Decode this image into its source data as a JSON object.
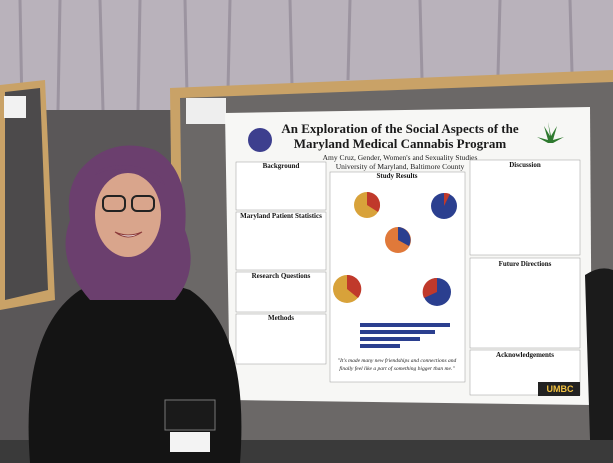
{
  "poster": {
    "title_line1": "An Exploration of the Social Aspects of the",
    "title_line2": "Maryland Medical Cannabis Program",
    "author": "Amy Cruz, Gender, Women's and Sexuality Studies",
    "affiliation": "University of Maryland, Baltimore County",
    "sections": {
      "background": "Background",
      "statistics": "Maryland Patient Statistics",
      "research": "Research Questions",
      "methods": "Methods",
      "results": "Study Results",
      "discussion": "Discussion",
      "future": "Future Directions",
      "acknowledgements": "Acknowledgements"
    },
    "quote_line1": "\"It's made many new friendships and connections and",
    "quote_line2": "finally feel like a part of something bigger than me.\"",
    "logo": "UMBC"
  }
}
